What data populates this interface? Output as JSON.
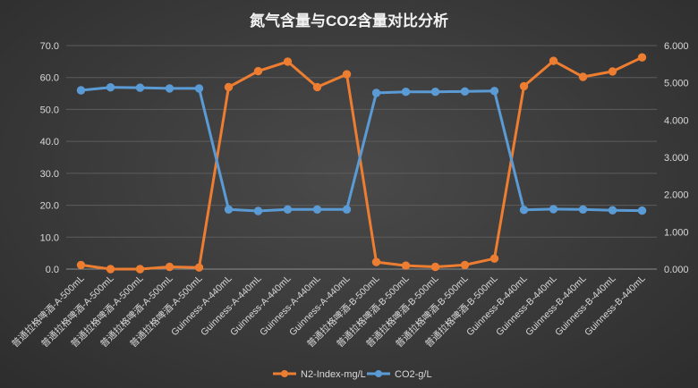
{
  "chart_data": {
    "type": "line",
    "title": "氮气含量与CO2含量对比分析",
    "categories": [
      "普通拉格啤酒-A-500mL",
      "普通拉格啤酒-A-500mL",
      "普通拉格啤酒-A-500mL",
      "普通拉格啤酒-A-500mL",
      "普通拉格啤酒-A-500mL",
      "Guinness-A-440mL",
      "Guinness-A-440mL",
      "Guinness-A-440mL",
      "Guinness-A-440mL",
      "Guinness-A-440mL",
      "普通拉格啤酒-B-500mL",
      "普通拉格啤酒-B-500mL",
      "普通拉格啤酒-B-500mL",
      "普通拉格啤酒-B-500mL",
      "普通拉格啤酒-B-500mL",
      "Guinness-B-440mL",
      "Guinness-B-440mL",
      "Guinness-B-440mL",
      "Guinness-B-440mL",
      "Guinness-B-440mL"
    ],
    "series": [
      {
        "name": "N2-Index-mg/L",
        "axis": "left",
        "color": "#ED7D31",
        "values": [
          1.3,
          0.0,
          0.0,
          0.7,
          0.5,
          57.0,
          62.0,
          65.0,
          57.0,
          61.0,
          2.2,
          1.1,
          0.7,
          1.3,
          3.3,
          57.3,
          65.2,
          60.2,
          61.9,
          66.3
        ]
      },
      {
        "name": "CO2-g/L",
        "axis": "right",
        "color": "#5B9BD5",
        "values": [
          4.8,
          4.88,
          4.87,
          4.85,
          4.85,
          1.6,
          1.56,
          1.6,
          1.6,
          1.6,
          4.73,
          4.76,
          4.76,
          4.77,
          4.78,
          1.59,
          1.61,
          1.6,
          1.58,
          1.57
        ]
      }
    ],
    "y_left": {
      "min": 0,
      "max": 70,
      "ticks": [
        "0.0",
        "10.0",
        "20.0",
        "30.0",
        "40.0",
        "50.0",
        "60.0",
        "70.0"
      ]
    },
    "y_right": {
      "min": 0,
      "max": 6,
      "ticks": [
        "0.000",
        "1.000",
        "2.000",
        "3.000",
        "4.000",
        "5.000",
        "6.000"
      ]
    },
    "grid": true,
    "legend": "bottom"
  }
}
